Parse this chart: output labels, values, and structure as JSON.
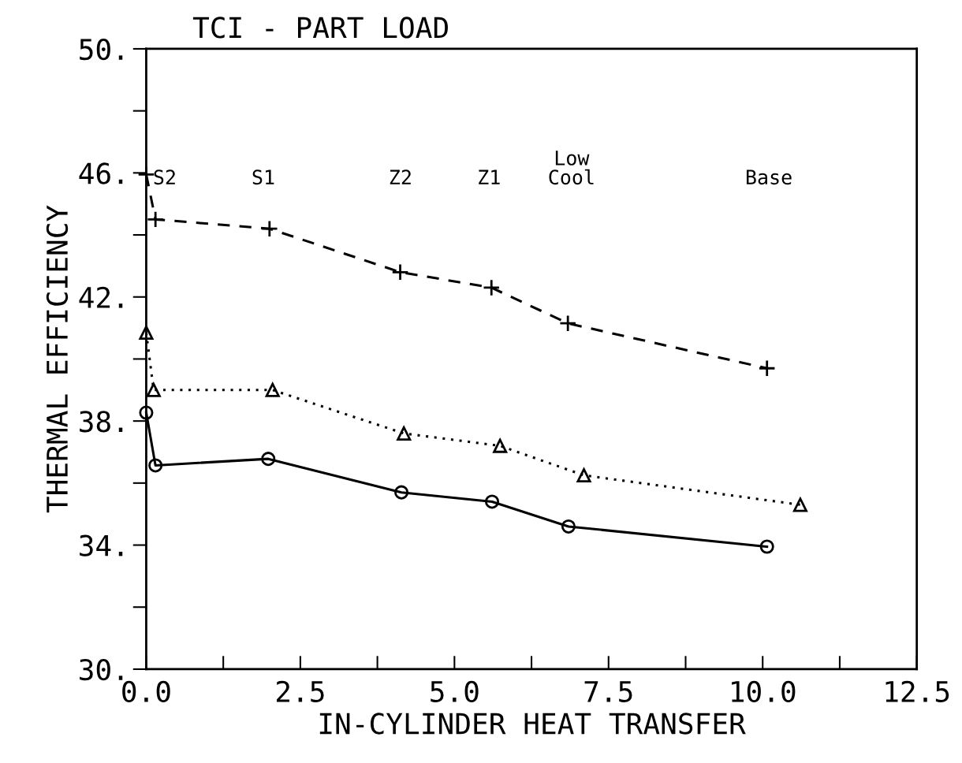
{
  "chart_data": {
    "type": "line",
    "title": "TCI - PART LOAD",
    "xlabel": "IN-CYLINDER HEAT TRANSFER",
    "ylabel": "THERMAL EFFICIENCY",
    "series": [
      {
        "color": "#000000",
        "marker": "cross",
        "line_style": "dashed",
        "x": [
          0,
          0.15,
          2.0,
          4.12,
          5.6,
          6.84,
          10.07
        ],
        "values": [
          45.95,
          44.5,
          44.2,
          42.8,
          42.3,
          41.15,
          39.7
        ]
      },
      {
        "color": "#000000",
        "marker": "triangle",
        "line_style": "dotted",
        "x": [
          0,
          0.12,
          2.05,
          4.18,
          5.74,
          7.1,
          10.61
        ],
        "values": [
          40.85,
          39.0,
          39.0,
          37.6,
          37.2,
          36.25,
          35.3
        ]
      },
      {
        "color": "#000000",
        "marker": "circle",
        "line_style": "solid",
        "x": [
          0,
          0.15,
          1.98,
          4.14,
          5.61,
          6.85,
          10.07
        ],
        "values": [
          38.27,
          36.57,
          36.78,
          35.7,
          35.4,
          34.6,
          33.95
        ]
      }
    ],
    "xlim": [
      0,
      12.5
    ],
    "ylim": [
      30,
      50
    ],
    "xticks": [
      {
        "value": 0,
        "label": "0.0"
      },
      {
        "value": 2.5,
        "label": "2.5"
      },
      {
        "value": 5,
        "label": "5.0"
      },
      {
        "value": 7.5,
        "label": "7.5"
      },
      {
        "value": 10,
        "label": "10.0"
      },
      {
        "value": 12.5,
        "label": "12.5"
      }
    ],
    "yticks": [
      {
        "value": 30,
        "label": "30."
      },
      {
        "value": 34,
        "label": "34."
      },
      {
        "value": 38,
        "label": "38."
      },
      {
        "value": 42,
        "label": "42."
      },
      {
        "value": 46,
        "label": "46."
      },
      {
        "value": 50,
        "label": "50."
      }
    ],
    "annotations": [
      "S2",
      "S1",
      "Z2",
      "Z1",
      "Low\nCool",
      "Base"
    ],
    "grid": false,
    "legend": false
  }
}
